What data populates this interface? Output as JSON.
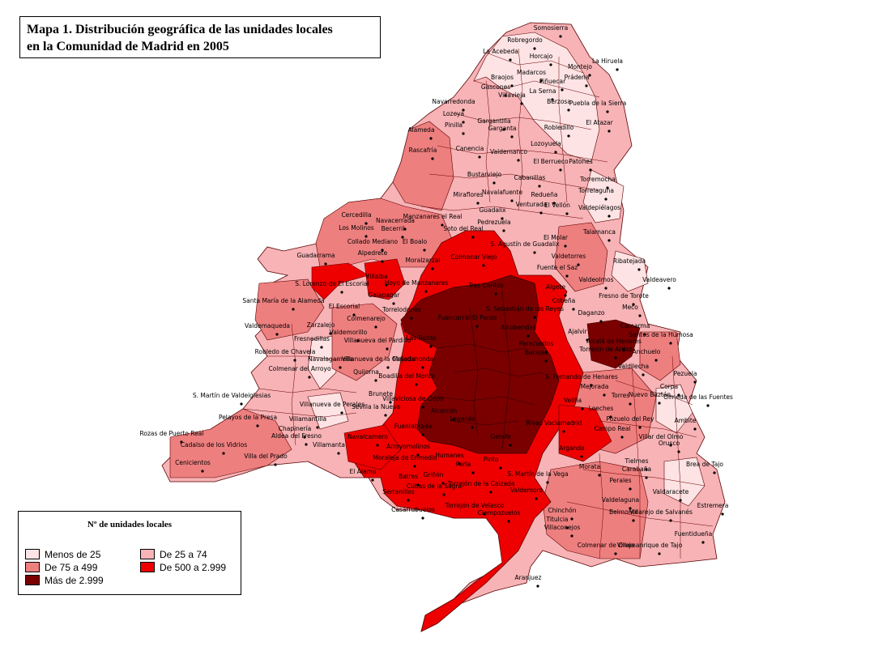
{
  "title": {
    "line1": "Mapa 1. Distribución geográfica de las unidades locales",
    "line2": "en la Comunidad de Madrid en 2005"
  },
  "legend": {
    "title": "Nº de unidades locales",
    "items": [
      {
        "label": "Menos de 25",
        "color": "#fde3e4"
      },
      {
        "label": "De 25 a 74",
        "color": "#f7b3b6"
      },
      {
        "label": "De 75 a 499",
        "color": "#ee7f7f"
      },
      {
        "label": "De 500 a 2.999",
        "color": "#ee0000"
      },
      {
        "label": "Más de 2.999",
        "color": "#7a0000"
      }
    ]
  },
  "colors": {
    "menos_25": "#fde3e4",
    "de_25_74": "#f7b3b6",
    "de_75_499": "#ee7f7f",
    "de_500_2999": "#ee0000",
    "mas_2999": "#7a0000",
    "border": "#5a0000"
  },
  "municipality_labels": [
    "Somosierra",
    "Robregordo",
    "La Acebeda",
    "Horcajo",
    "Madarcos",
    "Braojos",
    "Montejo",
    "La Hiruela",
    "Prádena",
    "Piñuecar",
    "Gascones",
    "Villavieja",
    "La Serna",
    "Puebla de la Sierra",
    "Berzosa",
    "Navarredonda",
    "Lozoya",
    "Pinilla",
    "Garganta",
    "Gargantilla",
    "El Atazar",
    "Robledillo",
    "Alameda",
    "Rascafría",
    "Lozoyuela",
    "Canencia",
    "Valdemanco",
    "El Berrueco",
    "Patones",
    "Bustarviejo",
    "Cabanillas",
    "Torremocha",
    "Miraflores",
    "Navalafuente",
    "Redueña",
    "Torrelaguna",
    "Guadalix",
    "Venturada",
    "El Vellón",
    "Valdepiélagos",
    "Cercedilla",
    "Navacerrada",
    "Becerril",
    "Manzanares el Real",
    "Soto del Real",
    "Pedrezuela",
    "Los Molinos",
    "Collado Mediano",
    "El Boalo",
    "S. Agustín de Guadalix",
    "El Molar",
    "Talamanca",
    "Guadarrama",
    "Alpedrete",
    "Moralzarzal",
    "Colmenar Viejo",
    "Valdetorres",
    "Ribatejada",
    "Fuente el Saz",
    "Valdeavero",
    "Villalba",
    "Hoyo de Manzanares",
    "Tres Cantos",
    "Algete",
    "Valdeolmos",
    "S. Lorenzo de El Escorial",
    "Galapagar",
    "Fresno de Torote",
    "Cobeña",
    "Santa María de la Alameda",
    "El Escorial",
    "Torrelodones",
    "Fuencarral-El Pardo",
    "S. Sebastián de los Reyes",
    "Alcobendas",
    "Daganzo",
    "Meco",
    "Zarzalejo",
    "Colmenarejo",
    "Camarma",
    "Valdemaqueda",
    "Valdemorillo",
    "Las Rozas",
    "Paracuellos",
    "Ajalvir",
    "Fresnedillas",
    "Villanueva del Pardillo",
    "Robledo de Chavela",
    "Navalagamella",
    "Majadahonda",
    "Barajas",
    "Torrejón de Ardoz",
    "Alcalá de Henares",
    "Santos de la Humosa",
    "Villanueva de la Cañada",
    "Valdilecha",
    "Anchuelo",
    "Colmenar del Arroyo",
    "Quijorna",
    "Boadilla del Monte",
    "S. Fernando de Henares",
    "Pezuela",
    "Brunete",
    "Mejorada",
    "Velilla",
    "Loeches",
    "Torres",
    "Nuevo Baztán",
    "Corpa",
    "Olmeda de las Fuentes",
    "S. Martín de Valdeiglesias",
    "Villanueva de Perales",
    "Sevilla la Nueva",
    "Villaviciosa de Odón",
    "Alcorcón",
    "Leganés",
    "Getafe",
    "Rivas Vaciamadrid",
    "Pozuelo del Rey",
    "Ambite",
    "Pelayos de la Presa",
    "Chapinería",
    "Villamantilla",
    "Navalcarnero",
    "Arroyomolinos",
    "Fuenlabrada",
    "Moraleja de Enmedio",
    "Humanes",
    "Parla",
    "Pinto",
    "Arganda",
    "Campo Real",
    "Villar del Olmo",
    "Orusco",
    "Rozas de Puerto Real",
    "Cadalso de los Vidrios",
    "Cenicientos",
    "Aldea del Fresno",
    "Villamanta",
    "Villa del Prado",
    "El Álamo",
    "Batres",
    "Griñón",
    "Serranillos",
    "Cubas de la Sagra",
    "Torrejón de la Calzada",
    "Casarrubuelos",
    "Torrejón de Velasco",
    "S. Martín de la Vega",
    "Valdemoro",
    "Ciempozuelos",
    "Tielmes",
    "Carabaña",
    "Morata",
    "Perales",
    "Valdelaguna",
    "Chinchón",
    "Villaconejos",
    "Titulcia",
    "Belmonte",
    "Villarejo de Salvanés",
    "Valdaracete",
    "Brea de Tajo",
    "Estremera",
    "Fuentidueña",
    "Colmenar de Oreja",
    "Villamanrique de Tajo",
    "Aranjuez"
  ]
}
